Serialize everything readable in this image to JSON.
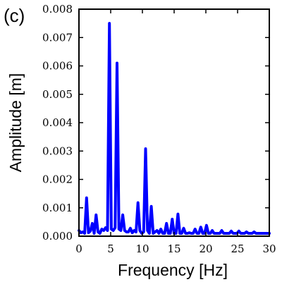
{
  "panel_label": "(c)",
  "chart_data": {
    "type": "line",
    "title": "",
    "xlabel": "Frequency [Hz]",
    "ylabel": "Amplitude [m]",
    "xlim": [
      0,
      30
    ],
    "ylim": [
      0,
      0.008
    ],
    "x_ticks": [
      0,
      5,
      10,
      15,
      20,
      25,
      30
    ],
    "x_tick_labels": [
      "0",
      "5",
      "10",
      "15",
      "20",
      "25",
      "30"
    ],
    "y_ticks": [
      0,
      0.001,
      0.002,
      0.003,
      0.004,
      0.005,
      0.006,
      0.007,
      0.008
    ],
    "y_tick_labels": [
      "0.000",
      "0.001",
      "0.002",
      "0.003",
      "0.004",
      "0.005",
      "0.006",
      "0.007",
      "0.008"
    ],
    "grid": false,
    "series_color": "#0000ff",
    "series": [
      {
        "name": "",
        "x": [
          0,
          0.3,
          0.6,
          0.9,
          1.2,
          1.5,
          1.8,
          2.1,
          2.4,
          2.7,
          3.0,
          3.3,
          3.6,
          3.9,
          4.2,
          4.5,
          4.8,
          5.1,
          5.4,
          5.7,
          6.0,
          6.3,
          6.6,
          6.9,
          7.2,
          7.5,
          7.8,
          8.1,
          8.4,
          8.7,
          9.0,
          9.3,
          9.6,
          9.9,
          10.2,
          10.5,
          10.8,
          11.1,
          11.4,
          11.7,
          12.0,
          12.3,
          12.6,
          12.9,
          13.2,
          13.5,
          13.8,
          14.1,
          14.4,
          14.7,
          15.0,
          15.3,
          15.6,
          15.9,
          16.2,
          16.5,
          16.8,
          17.1,
          17.4,
          17.7,
          18.0,
          18.3,
          18.6,
          18.9,
          19.2,
          19.5,
          19.8,
          20.1,
          20.4,
          20.7,
          21.0,
          21.3,
          21.6,
          21.9,
          22.2,
          22.5,
          22.8,
          23.1,
          23.4,
          23.7,
          24.0,
          24.3,
          24.6,
          24.9,
          25.2,
          25.5,
          25.8,
          26.1,
          26.4,
          26.7,
          27.0,
          27.3,
          27.6,
          27.9,
          28.2,
          28.5,
          28.8,
          29.1,
          29.4,
          29.7,
          30.0
        ],
        "y": [
          0.0002,
          0.00012,
          0.00015,
          0.0001,
          0.00135,
          0.00012,
          0.00018,
          0.00045,
          0.0001,
          0.00075,
          0.00015,
          0.0001,
          0.00025,
          0.0002,
          0.0003,
          0.0002,
          0.0075,
          0.00025,
          0.0002,
          0.0003,
          0.0061,
          0.00025,
          0.0002,
          0.00075,
          0.0002,
          0.00015,
          0.00015,
          0.00028,
          0.00012,
          0.0002,
          0.00015,
          0.00118,
          0.0002,
          0.0001,
          0.00015,
          0.00308,
          0.0002,
          0.0001,
          0.00105,
          0.0001,
          0.00015,
          0.0002,
          0.0001,
          0.00025,
          0.0001,
          0.0001,
          0.00045,
          0.0001,
          0.0001,
          0.0006,
          0.0001,
          0.0001,
          0.00078,
          0.0001,
          0.0001,
          0.00028,
          0.0001,
          0.0001,
          0.00012,
          0.0001,
          0.0001,
          0.00025,
          0.0001,
          0.0001,
          0.00032,
          0.0001,
          0.0001,
          0.00038,
          0.0001,
          0.0001,
          0.0002,
          0.0001,
          0.0001,
          0.0001,
          0.0001,
          0.0002,
          0.0001,
          0.0001,
          0.0001,
          0.0001,
          0.00018,
          0.0001,
          0.0001,
          0.0001,
          0.00018,
          0.0001,
          0.0001,
          0.0001,
          0.00015,
          0.0001,
          0.0001,
          0.0001,
          0.00015,
          0.0001,
          0.0001,
          0.0001,
          0.0001,
          0.0001,
          0.0001,
          0.0001,
          0.0001
        ]
      }
    ]
  }
}
